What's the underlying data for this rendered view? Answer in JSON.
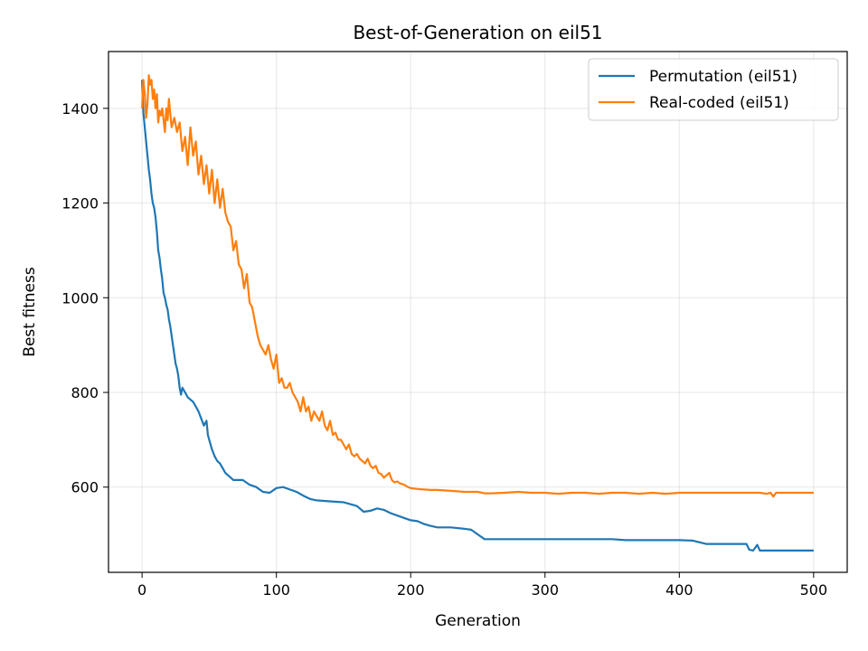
{
  "chart_data": {
    "type": "line",
    "title": "Best-of-Generation on eil51",
    "xlabel": "Generation",
    "ylabel": "Best fitness",
    "xlim": [
      -25,
      525
    ],
    "ylim": [
      420,
      1520
    ],
    "xticks": [
      0,
      100,
      200,
      300,
      400,
      500
    ],
    "yticks": [
      600,
      800,
      1000,
      1200,
      1400
    ],
    "grid": true,
    "legend_position": "top-right",
    "colors": {
      "permutation": "#1f77b4",
      "real": "#ff7f0e"
    },
    "series": [
      {
        "name": "Permutation (eil51)",
        "color": "#1f77b4",
        "points": [
          [
            0,
            1460
          ],
          [
            1,
            1390
          ],
          [
            2,
            1360
          ],
          [
            3,
            1330
          ],
          [
            4,
            1300
          ],
          [
            5,
            1270
          ],
          [
            6,
            1250
          ],
          [
            7,
            1220
          ],
          [
            8,
            1200
          ],
          [
            9,
            1190
          ],
          [
            10,
            1170
          ],
          [
            11,
            1140
          ],
          [
            12,
            1100
          ],
          [
            13,
            1085
          ],
          [
            14,
            1060
          ],
          [
            15,
            1040
          ],
          [
            16,
            1010
          ],
          [
            17,
            1000
          ],
          [
            18,
            985
          ],
          [
            19,
            975
          ],
          [
            20,
            955
          ],
          [
            21,
            940
          ],
          [
            22,
            920
          ],
          [
            23,
            900
          ],
          [
            24,
            880
          ],
          [
            25,
            860
          ],
          [
            26,
            850
          ],
          [
            27,
            835
          ],
          [
            28,
            810
          ],
          [
            29,
            795
          ],
          [
            30,
            810
          ],
          [
            32,
            800
          ],
          [
            34,
            790
          ],
          [
            36,
            785
          ],
          [
            38,
            780
          ],
          [
            40,
            770
          ],
          [
            42,
            760
          ],
          [
            44,
            745
          ],
          [
            46,
            730
          ],
          [
            48,
            740
          ],
          [
            49,
            710
          ],
          [
            50,
            700
          ],
          [
            52,
            680
          ],
          [
            54,
            665
          ],
          [
            56,
            655
          ],
          [
            58,
            650
          ],
          [
            60,
            640
          ],
          [
            62,
            630
          ],
          [
            64,
            625
          ],
          [
            66,
            620
          ],
          [
            68,
            615
          ],
          [
            70,
            615
          ],
          [
            75,
            615
          ],
          [
            80,
            605
          ],
          [
            85,
            600
          ],
          [
            90,
            590
          ],
          [
            95,
            588
          ],
          [
            100,
            598
          ],
          [
            105,
            600
          ],
          [
            110,
            595
          ],
          [
            115,
            590
          ],
          [
            120,
            582
          ],
          [
            125,
            575
          ],
          [
            130,
            572
          ],
          [
            140,
            570
          ],
          [
            150,
            568
          ],
          [
            160,
            560
          ],
          [
            165,
            548
          ],
          [
            170,
            550
          ],
          [
            175,
            555
          ],
          [
            180,
            552
          ],
          [
            185,
            545
          ],
          [
            190,
            540
          ],
          [
            195,
            535
          ],
          [
            200,
            530
          ],
          [
            205,
            528
          ],
          [
            210,
            522
          ],
          [
            215,
            518
          ],
          [
            220,
            515
          ],
          [
            230,
            515
          ],
          [
            240,
            512
          ],
          [
            245,
            510
          ],
          [
            250,
            500
          ],
          [
            255,
            490
          ],
          [
            260,
            490
          ],
          [
            300,
            490
          ],
          [
            350,
            490
          ],
          [
            360,
            488
          ],
          [
            400,
            488
          ],
          [
            410,
            487
          ],
          [
            420,
            480
          ],
          [
            450,
            480
          ],
          [
            452,
            468
          ],
          [
            455,
            466
          ],
          [
            458,
            478
          ],
          [
            460,
            466
          ],
          [
            480,
            466
          ],
          [
            500,
            466
          ]
        ]
      },
      {
        "name": "Real-coded (eil51)",
        "color": "#ff7f0e",
        "points": [
          [
            0,
            1400
          ],
          [
            1,
            1460
          ],
          [
            2,
            1430
          ],
          [
            3,
            1380
          ],
          [
            4,
            1410
          ],
          [
            5,
            1470
          ],
          [
            6,
            1450
          ],
          [
            7,
            1460
          ],
          [
            8,
            1420
          ],
          [
            9,
            1440
          ],
          [
            10,
            1400
          ],
          [
            11,
            1430
          ],
          [
            12,
            1370
          ],
          [
            13,
            1395
          ],
          [
            14,
            1385
          ],
          [
            15,
            1400
          ],
          [
            16,
            1375
          ],
          [
            17,
            1350
          ],
          [
            18,
            1400
          ],
          [
            19,
            1375
          ],
          [
            20,
            1420
          ],
          [
            22,
            1360
          ],
          [
            24,
            1380
          ],
          [
            26,
            1350
          ],
          [
            28,
            1370
          ],
          [
            30,
            1310
          ],
          [
            32,
            1340
          ],
          [
            34,
            1280
          ],
          [
            36,
            1360
          ],
          [
            38,
            1300
          ],
          [
            40,
            1330
          ],
          [
            42,
            1260
          ],
          [
            44,
            1300
          ],
          [
            46,
            1240
          ],
          [
            48,
            1280
          ],
          [
            50,
            1220
          ],
          [
            52,
            1270
          ],
          [
            54,
            1200
          ],
          [
            56,
            1250
          ],
          [
            58,
            1190
          ],
          [
            60,
            1230
          ],
          [
            62,
            1180
          ],
          [
            64,
            1160
          ],
          [
            66,
            1150
          ],
          [
            68,
            1100
          ],
          [
            70,
            1120
          ],
          [
            72,
            1070
          ],
          [
            74,
            1060
          ],
          [
            76,
            1020
          ],
          [
            78,
            1050
          ],
          [
            80,
            990
          ],
          [
            82,
            980
          ],
          [
            84,
            950
          ],
          [
            86,
            920
          ],
          [
            88,
            900
          ],
          [
            90,
            890
          ],
          [
            92,
            880
          ],
          [
            94,
            900
          ],
          [
            96,
            870
          ],
          [
            98,
            850
          ],
          [
            100,
            880
          ],
          [
            102,
            820
          ],
          [
            104,
            830
          ],
          [
            106,
            810
          ],
          [
            108,
            810
          ],
          [
            110,
            820
          ],
          [
            112,
            800
          ],
          [
            114,
            790
          ],
          [
            116,
            780
          ],
          [
            118,
            760
          ],
          [
            120,
            790
          ],
          [
            122,
            760
          ],
          [
            124,
            770
          ],
          [
            126,
            740
          ],
          [
            128,
            760
          ],
          [
            130,
            750
          ],
          [
            132,
            740
          ],
          [
            134,
            760
          ],
          [
            136,
            730
          ],
          [
            138,
            720
          ],
          [
            140,
            740
          ],
          [
            142,
            710
          ],
          [
            144,
            715
          ],
          [
            146,
            700
          ],
          [
            148,
            700
          ],
          [
            150,
            690
          ],
          [
            152,
            680
          ],
          [
            154,
            690
          ],
          [
            156,
            670
          ],
          [
            158,
            665
          ],
          [
            160,
            670
          ],
          [
            162,
            660
          ],
          [
            164,
            655
          ],
          [
            166,
            650
          ],
          [
            168,
            660
          ],
          [
            170,
            645
          ],
          [
            172,
            640
          ],
          [
            174,
            645
          ],
          [
            176,
            630
          ],
          [
            178,
            628
          ],
          [
            180,
            620
          ],
          [
            182,
            625
          ],
          [
            184,
            630
          ],
          [
            186,
            615
          ],
          [
            188,
            610
          ],
          [
            190,
            612
          ],
          [
            192,
            608
          ],
          [
            195,
            605
          ],
          [
            198,
            600
          ],
          [
            200,
            598
          ],
          [
            205,
            596
          ],
          [
            210,
            595
          ],
          [
            215,
            594
          ],
          [
            220,
            594
          ],
          [
            230,
            592
          ],
          [
            240,
            590
          ],
          [
            250,
            590
          ],
          [
            255,
            587
          ],
          [
            260,
            587
          ],
          [
            270,
            588
          ],
          [
            280,
            590
          ],
          [
            290,
            588
          ],
          [
            300,
            588
          ],
          [
            310,
            586
          ],
          [
            320,
            588
          ],
          [
            330,
            588
          ],
          [
            340,
            586
          ],
          [
            350,
            588
          ],
          [
            360,
            588
          ],
          [
            370,
            586
          ],
          [
            380,
            588
          ],
          [
            390,
            586
          ],
          [
            400,
            588
          ],
          [
            410,
            588
          ],
          [
            420,
            588
          ],
          [
            430,
            588
          ],
          [
            440,
            588
          ],
          [
            450,
            588
          ],
          [
            460,
            588
          ],
          [
            465,
            586
          ],
          [
            468,
            588
          ],
          [
            470,
            580
          ],
          [
            472,
            588
          ],
          [
            480,
            588
          ],
          [
            490,
            588
          ],
          [
            500,
            588
          ]
        ]
      }
    ]
  }
}
